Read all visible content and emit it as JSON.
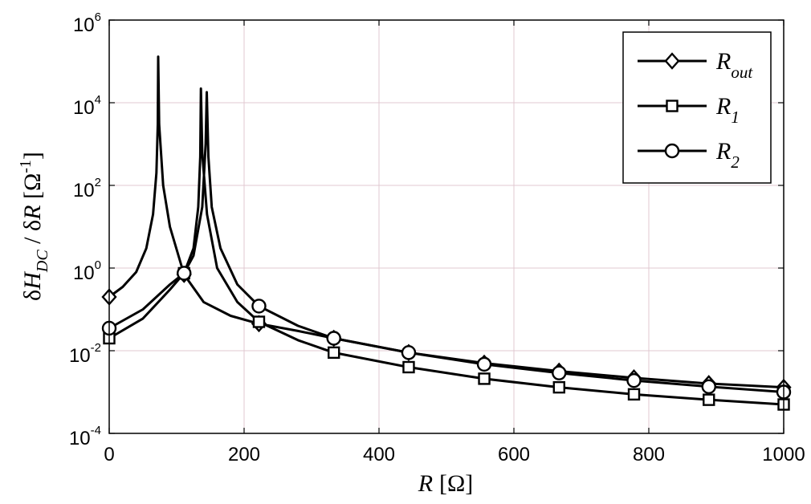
{
  "chart_data": {
    "type": "line",
    "x_scale": "linear",
    "y_scale": "log",
    "xlim": [
      0,
      1000
    ],
    "ylim_exponent": [
      -4,
      6
    ],
    "x_ticks": [
      0,
      200,
      400,
      600,
      800,
      1000
    ],
    "x_tick_labels": [
      "0",
      "200",
      "400",
      "600",
      "800",
      "1000"
    ],
    "y_ticks": [
      {
        "base": "10",
        "exp": "-4"
      },
      {
        "base": "10",
        "exp": "-2"
      },
      {
        "base": "10",
        "exp": "0"
      },
      {
        "base": "10",
        "exp": "2"
      },
      {
        "base": "10",
        "exp": "4"
      },
      {
        "base": "10",
        "exp": "6"
      }
    ],
    "grid": true,
    "legend_position": "top-right",
    "xlabel": {
      "var": "R",
      "unit": "[Ω]"
    },
    "ylabel": {
      "delta1": "δ",
      "H": "H",
      "sub": "DC",
      "mid": " / δ",
      "R": "R",
      "unit_open": " [Ω",
      "exp": "-1",
      "unit_close": "]"
    },
    "series": [
      {
        "name": "R_out",
        "label_main": "R",
        "label_sub": "out",
        "marker": "diamond",
        "marker_x": [
          0,
          111,
          222,
          333,
          444,
          556,
          667,
          778,
          889,
          1000
        ],
        "x": [
          0,
          20,
          40,
          55,
          65,
          70,
          72,
          72.6,
          74,
          80,
          90,
          111,
          140,
          180,
          222,
          280,
          333,
          444,
          556,
          667,
          778,
          889,
          1000
        ],
        "y": [
          0.2,
          0.35,
          0.8,
          3,
          20,
          200,
          3000,
          130000,
          3000,
          100,
          10,
          0.7,
          0.15,
          0.07,
          0.045,
          0.03,
          0.02,
          0.009,
          0.005,
          0.0032,
          0.0022,
          0.0016,
          0.0013
        ]
      },
      {
        "name": "R_1",
        "label_main": "R",
        "label_sub": "1",
        "marker": "square",
        "marker_x": [
          0,
          111,
          222,
          333,
          444,
          556,
          667,
          778,
          889,
          1000
        ],
        "x": [
          0,
          50,
          90,
          111,
          125,
          132,
          135,
          136,
          138,
          145,
          160,
          190,
          222,
          280,
          333,
          444,
          556,
          667,
          778,
          889,
          1000
        ],
        "y": [
          0.02,
          0.06,
          0.3,
          0.75,
          3,
          30,
          500,
          22000,
          600,
          20,
          1,
          0.15,
          0.05,
          0.018,
          0.009,
          0.004,
          0.0021,
          0.0013,
          0.00088,
          0.00065,
          0.0005
        ]
      },
      {
        "name": "R_2",
        "label_main": "R",
        "label_sub": "2",
        "marker": "circle",
        "marker_x": [
          0,
          111,
          222,
          333,
          444,
          556,
          667,
          778,
          889,
          1000
        ],
        "x": [
          0,
          50,
          90,
          111,
          125,
          138,
          143,
          144.6,
          147,
          152,
          165,
          190,
          222,
          280,
          333,
          444,
          556,
          667,
          778,
          889,
          1000
        ],
        "y": [
          0.035,
          0.1,
          0.4,
          0.75,
          2,
          30,
          1000,
          18000,
          500,
          30,
          3,
          0.4,
          0.12,
          0.04,
          0.02,
          0.009,
          0.0047,
          0.0029,
          0.0019,
          0.00135,
          0.001
        ]
      }
    ]
  }
}
